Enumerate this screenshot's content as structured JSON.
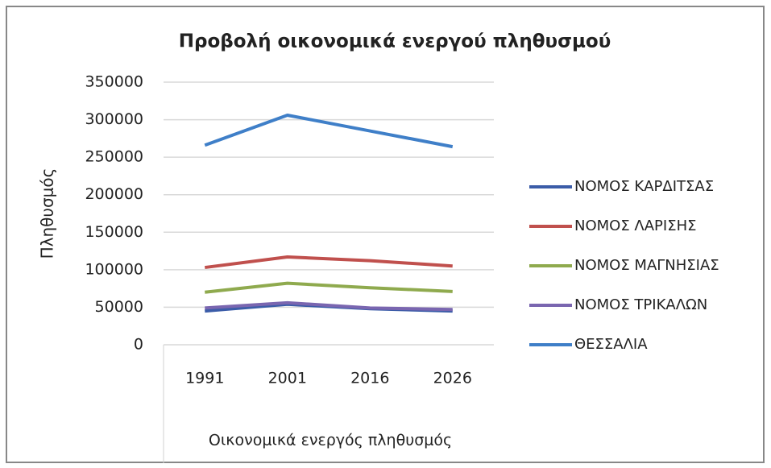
{
  "chart_data": {
    "type": "line",
    "title": "Προβολή οικονομικά ενεργού πληθυσμού",
    "x_label": "Οικονομικά ενεργός πληθυσμός",
    "y_label": "Πληθυσμός",
    "categories": [
      "1991",
      "2001",
      "2016",
      "2026"
    ],
    "series": [
      {
        "name": "ΝΟΜΟΣ ΚΑΡΔΙΤΣΑΣ",
        "color": "#3b5ca8",
        "values": [
          45000,
          54000,
          48000,
          45000
        ]
      },
      {
        "name": "ΝΟΜΟΣ ΛΑΡΙΣΗΣ",
        "color": "#c0504d",
        "values": [
          103000,
          117000,
          112000,
          105000
        ]
      },
      {
        "name": "ΝΟΜΟΣ ΜΑΓΝΗΣΙΑΣ",
        "color": "#8faa4e",
        "values": [
          70000,
          82000,
          76000,
          71000
        ]
      },
      {
        "name": "ΝΟΜΟΣ ΤΡΙΚΑΛΩΝ",
        "color": "#7a66b0",
        "values": [
          49000,
          56000,
          49000,
          47000
        ]
      },
      {
        "name": "ΘΕΣΣΑΛΙΑ",
        "color": "#3f7fc8",
        "values": [
          266000,
          306000,
          285000,
          264000
        ]
      }
    ],
    "ylim": [
      0,
      350000
    ],
    "yticks": [
      0,
      50000,
      100000,
      150000,
      200000,
      250000,
      300000,
      350000
    ],
    "grid": true,
    "legend": "right"
  }
}
